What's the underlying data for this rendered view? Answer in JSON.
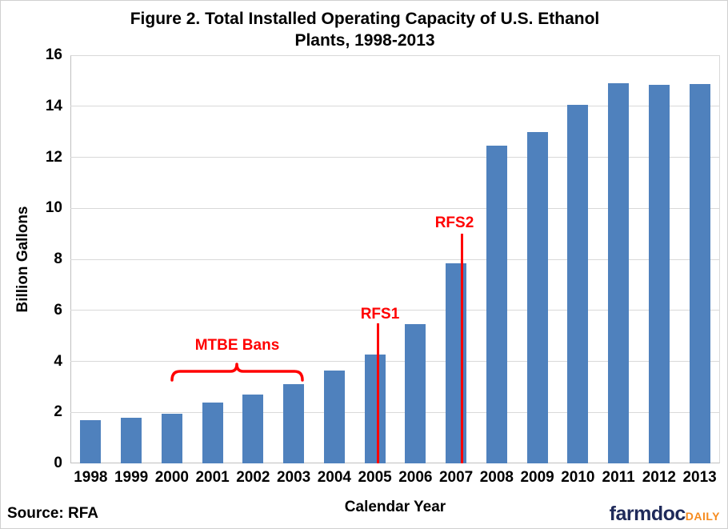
{
  "title": {
    "line1": "Figure 2. Total Installed Operating Capacity of U.S. Ethanol",
    "line2": "Plants, 1998-2013"
  },
  "source": "Source: RFA",
  "logo": {
    "farmdoc": "farmdoc",
    "daily": "DAILY",
    "farmdoc_color": "#1f2a5a",
    "daily_color": "#f68b1f"
  },
  "chart_data": {
    "type": "bar",
    "title": "Figure 2. Total Installed Operating Capacity of U.S. Ethanol Plants, 1998-2013",
    "xlabel": "Calendar Year",
    "ylabel": "Billion Gallons",
    "ylim": [
      0,
      16
    ],
    "yticks": [
      0,
      2,
      4,
      6,
      8,
      10,
      12,
      14,
      16
    ],
    "grid": true,
    "legend": false,
    "bar_color": "#4f81bd",
    "gridline_color": "#d9d9d9",
    "annotation_color": "#ff0000",
    "categories": [
      "1998",
      "1999",
      "2000",
      "2001",
      "2002",
      "2003",
      "2004",
      "2005",
      "2006",
      "2007",
      "2008",
      "2009",
      "2010",
      "2011",
      "2012",
      "2013"
    ],
    "values": [
      1.7,
      1.78,
      1.95,
      2.37,
      2.7,
      3.1,
      3.65,
      4.28,
      5.45,
      7.85,
      12.45,
      13.0,
      14.05,
      14.9,
      14.83,
      14.88
    ],
    "annotations": [
      {
        "type": "brace",
        "text": "MTBE Bans",
        "span": [
          "2000",
          "2003"
        ],
        "color": "#ff0000"
      },
      {
        "type": "vline",
        "text": "RFS1",
        "x": "2005",
        "color": "#ff0000"
      },
      {
        "type": "vline",
        "text": "RFS2",
        "x": "2007",
        "color": "#ff0000"
      }
    ]
  }
}
